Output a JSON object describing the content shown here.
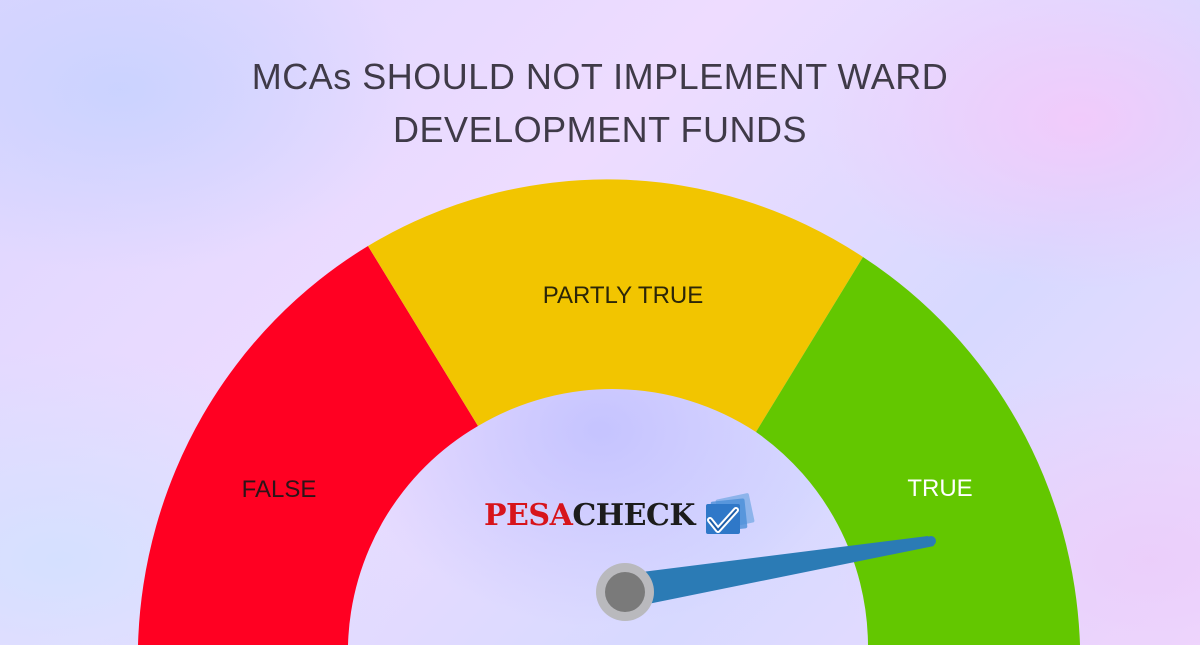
{
  "title": {
    "line1": "MCAs SHOULD NOT IMPLEMENT WARD",
    "line2": "DEVELOPMENT FUNDS"
  },
  "gauge": {
    "segments": [
      {
        "label": "FALSE",
        "color": "#ff0022",
        "label_color": "#2d1418"
      },
      {
        "label": "PARTLY TRUE",
        "color": "#f2c500",
        "label_color": "#2c2608"
      },
      {
        "label": "TRUE",
        "color": "#63c700",
        "label_color": "#ffffff"
      }
    ],
    "verdict": "TRUE",
    "needle_color": "#2b7bb5",
    "hub_color": "#7a7a7a"
  },
  "logo": {
    "part1": "PESA",
    "part2": "CHECK",
    "part1_color": "#d7141b",
    "part2_color": "#1c1c1c",
    "mark": "checkmark-icon"
  }
}
